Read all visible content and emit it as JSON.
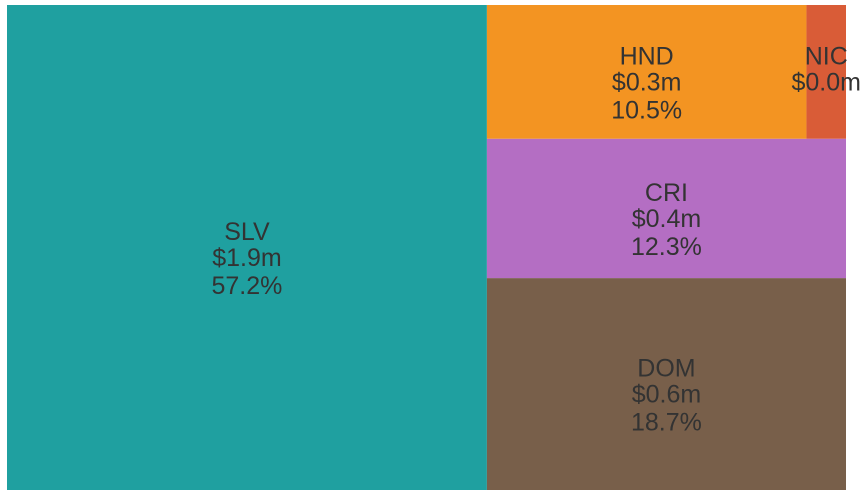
{
  "chart_data": {
    "type": "treemap",
    "items": [
      {
        "name": "SLV",
        "value": 57.2,
        "value_label": "57.2%",
        "amount": 1.9,
        "amount_label": "$1.9m",
        "color": "#1fa0a0"
      },
      {
        "name": "DOM",
        "value": 18.7,
        "value_label": "18.7%",
        "amount": 0.6,
        "amount_label": "$0.6m",
        "color": "#785f4a"
      },
      {
        "name": "CRI",
        "value": 12.3,
        "value_label": "12.3%",
        "amount": 0.4,
        "amount_label": "$0.4m",
        "color": "#b46ec3"
      },
      {
        "name": "HND",
        "value": 10.5,
        "value_label": "10.5%",
        "amount": 0.3,
        "amount_label": "$0.3m",
        "color": "#f39422"
      },
      {
        "name": "NIC",
        "value": 1.3,
        "amount": 0.0,
        "amount_label": "$0.0m",
        "color": "#d95c37"
      }
    ]
  }
}
